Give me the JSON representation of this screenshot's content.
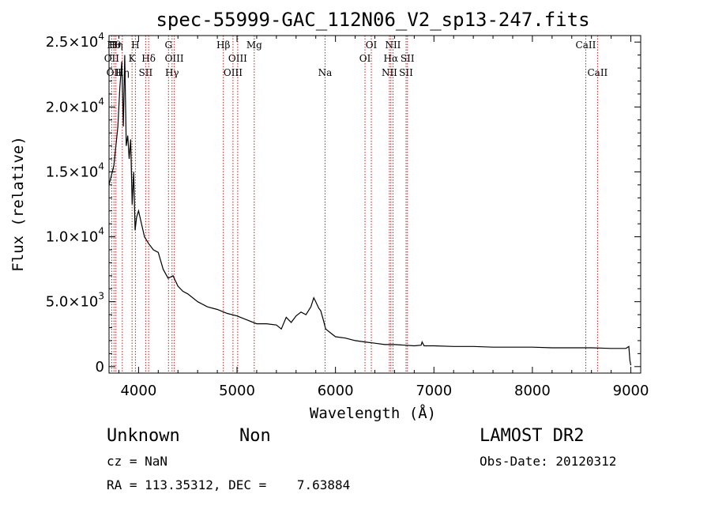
{
  "chart_data": {
    "type": "line",
    "title": "spec-55999-GAC_112N06_V2_sp13-247.fits",
    "xlabel": "Wavelength (Å)",
    "ylabel": "Flux (relative)",
    "xlim": [
      3700,
      9100
    ],
    "ylim": [
      -500,
      25500
    ],
    "xticks": [
      {
        "value": 4000,
        "label": "4000"
      },
      {
        "value": 5000,
        "label": "5000"
      },
      {
        "value": 6000,
        "label": "6000"
      },
      {
        "value": 7000,
        "label": "7000"
      },
      {
        "value": 8000,
        "label": "8000"
      },
      {
        "value": 9000,
        "label": "9000"
      }
    ],
    "yticks": [
      {
        "value": 0,
        "mant": "0",
        "exp": ""
      },
      {
        "value": 5000,
        "mant": "5.0×10",
        "exp": "3"
      },
      {
        "value": 10000,
        "mant": "1.0×10",
        "exp": "4"
      },
      {
        "value": 15000,
        "mant": "1.5×10",
        "exp": "4"
      },
      {
        "value": 20000,
        "mant": "2.0×10",
        "exp": "4"
      },
      {
        "value": 25000,
        "mant": "2.5×10",
        "exp": "4"
      }
    ],
    "series": [
      {
        "color": "#000000",
        "x": [
          3700,
          3750,
          3790,
          3810,
          3830,
          3845,
          3860,
          3875,
          3890,
          3905,
          3920,
          3935,
          3950,
          3965,
          3980,
          4000,
          4030,
          4060,
          4100,
          4150,
          4200,
          4250,
          4300,
          4350,
          4400,
          4450,
          4500,
          4600,
          4700,
          4800,
          4900,
          5000,
          5100,
          5200,
          5300,
          5400,
          5450,
          5500,
          5550,
          5600,
          5650,
          5700,
          5750,
          5780,
          5800,
          5830,
          5850,
          5880,
          5900,
          5950,
          6000,
          6100,
          6200,
          6300,
          6400,
          6500,
          6600,
          6700,
          6800,
          6870,
          6880,
          6900,
          7000,
          7200,
          7400,
          7600,
          7800,
          8000,
          8200,
          8400,
          8600,
          8800,
          8950,
          8980,
          8990,
          9000
        ],
        "y": [
          14000,
          15500,
          18500,
          21500,
          23500,
          18500,
          24000,
          17000,
          17800,
          16000,
          17500,
          12500,
          15000,
          10500,
          11500,
          12000,
          11000,
          10000,
          9500,
          9000,
          8800,
          7500,
          6800,
          7000,
          6200,
          5800,
          5600,
          5000,
          4600,
          4400,
          4100,
          3900,
          3600,
          3300,
          3300,
          3200,
          2900,
          3800,
          3400,
          3900,
          4200,
          4000,
          4600,
          5300,
          5000,
          4500,
          4300,
          3500,
          2900,
          2600,
          2300,
          2200,
          2000,
          1900,
          1800,
          1700,
          1700,
          1650,
          1600,
          1650,
          1900,
          1600,
          1600,
          1550,
          1550,
          1500,
          1500,
          1500,
          1450,
          1450,
          1450,
          1400,
          1400,
          1550,
          500,
          100
        ]
      }
    ],
    "lines": [
      {
        "x": 3727,
        "labels": [
          {
            "text": "OII",
            "row": 2
          }
        ]
      },
      {
        "x": 3750,
        "labels": [
          {
            "text": "Hθ",
            "row": 1
          },
          {
            "text": "OII",
            "row": 3
          }
        ]
      },
      {
        "x": 3770,
        "labels": [
          {
            "text": "Hη",
            "row": 1
          }
        ]
      },
      {
        "x": 3835,
        "labels": [
          {
            "text": "Hη",
            "row": 3
          }
        ]
      },
      {
        "x": 3934,
        "labels": [
          {
            "text": "K",
            "row": 2
          }
        ]
      },
      {
        "x": 3968,
        "labels": [
          {
            "text": "H",
            "row": 1
          }
        ]
      },
      {
        "x": 4072,
        "labels": [
          {
            "text": "SII",
            "row": 3
          }
        ]
      },
      {
        "x": 4102,
        "labels": [
          {
            "text": "Hδ",
            "row": 2
          }
        ]
      },
      {
        "x": 4304,
        "labels": [
          {
            "text": "G",
            "row": 1
          }
        ]
      },
      {
        "x": 4340,
        "labels": [
          {
            "text": "Hγ",
            "row": 3
          }
        ]
      },
      {
        "x": 4363,
        "labels": [
          {
            "text": "OIII",
            "row": 2
          }
        ]
      },
      {
        "x": 4861,
        "labels": [
          {
            "text": "Hβ",
            "row": 1
          }
        ]
      },
      {
        "x": 4959,
        "labels": [
          {
            "text": "OIII",
            "row": 3
          }
        ]
      },
      {
        "x": 5007,
        "labels": [
          {
            "text": "OIII",
            "row": 2
          }
        ]
      },
      {
        "x": 5175,
        "labels": [
          {
            "text": "Mg",
            "row": 1
          }
        ]
      },
      {
        "x": 5894,
        "labels": [
          {
            "text": "Na",
            "row": 3
          }
        ]
      },
      {
        "x": 6300,
        "labels": [
          {
            "text": "OI",
            "row": 2
          }
        ]
      },
      {
        "x": 6364,
        "labels": [
          {
            "text": "OI",
            "row": 1
          }
        ]
      },
      {
        "x": 6548,
        "labels": [
          {
            "text": "NII",
            "row": 3
          }
        ]
      },
      {
        "x": 6563,
        "labels": [
          {
            "text": "Hα",
            "row": 2
          }
        ]
      },
      {
        "x": 6584,
        "labels": [
          {
            "text": "NII",
            "row": 1
          }
        ]
      },
      {
        "x": 6717,
        "labels": [
          {
            "text": "SII",
            "row": 3
          }
        ]
      },
      {
        "x": 6731,
        "labels": [
          {
            "text": "SII",
            "row": 2
          }
        ]
      },
      {
        "x": 8542,
        "labels": [
          {
            "text": "CaII",
            "row": 1
          }
        ]
      },
      {
        "x": 8662,
        "labels": [
          {
            "text": "CaII",
            "row": 3
          }
        ]
      }
    ]
  },
  "info": {
    "object_class": "Unknown",
    "subclass": "Non",
    "survey": "LAMOST DR2",
    "redshift": "cz = NaN",
    "obs_date": "Obs-Date: 20120312",
    "coords": "RA = 113.35312, DEC =    7.63884"
  }
}
